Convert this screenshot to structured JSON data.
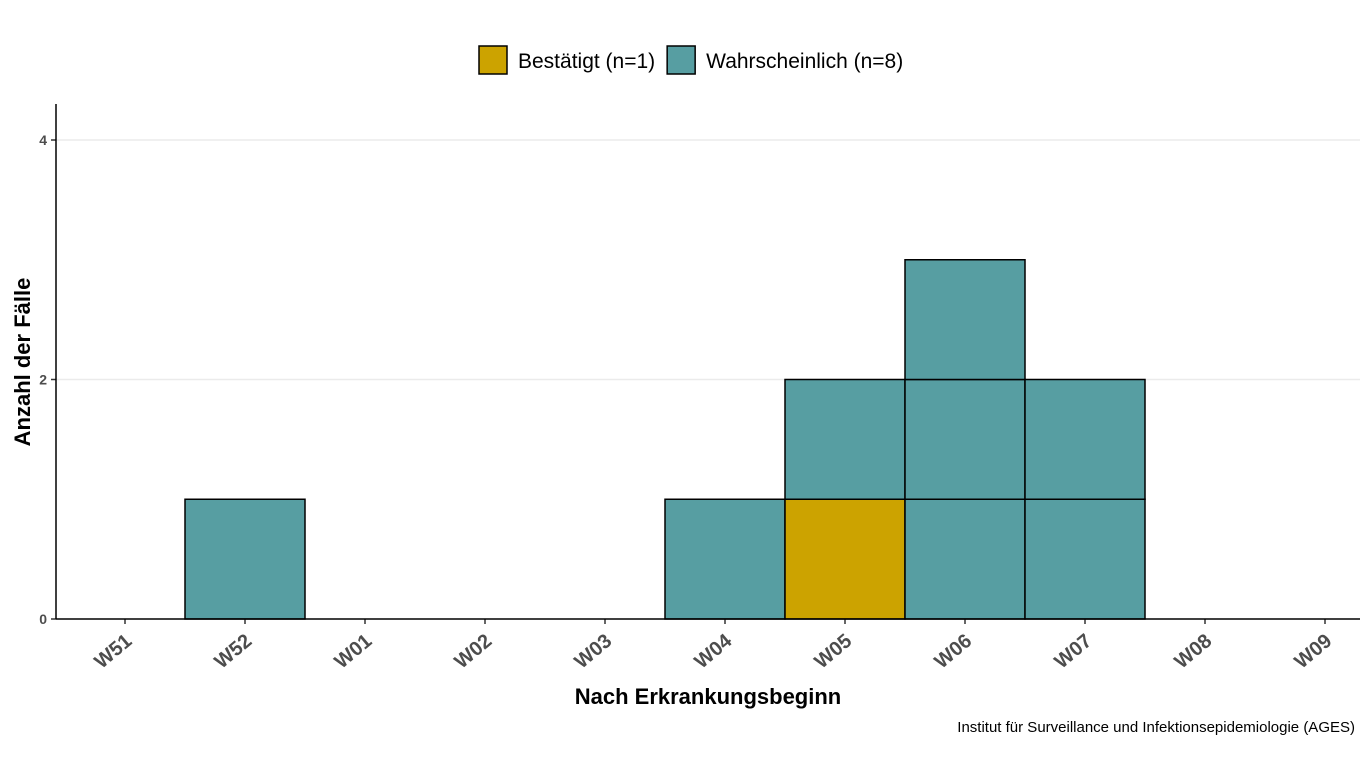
{
  "chart_data": {
    "type": "bar",
    "stacked": true,
    "categories": [
      "W51",
      "W52",
      "W01",
      "W02",
      "W03",
      "W04",
      "W05",
      "W06",
      "W07",
      "W08",
      "W09"
    ],
    "series": [
      {
        "name": "Bestätigt (n=1)",
        "color": "#CCA300",
        "values": [
          0,
          0,
          0,
          0,
          0,
          0,
          1,
          0,
          0,
          0,
          0
        ]
      },
      {
        "name": "Wahrscheinlich (n=8)",
        "color": "#579EA2",
        "values": [
          0,
          1,
          0,
          0,
          0,
          1,
          1,
          3,
          2,
          0,
          0
        ]
      }
    ],
    "xlabel": "Nach Erkrankungsbeginn",
    "ylabel": "Anzahl der Fälle",
    "ylim": [
      0,
      4.3
    ],
    "yticks": [
      "0",
      "2",
      "4"
    ],
    "grid": "horizontal-major",
    "legend_position": "top",
    "caption": "Institut für Surveillance und Infektionsepidemiologie (AGES)"
  }
}
